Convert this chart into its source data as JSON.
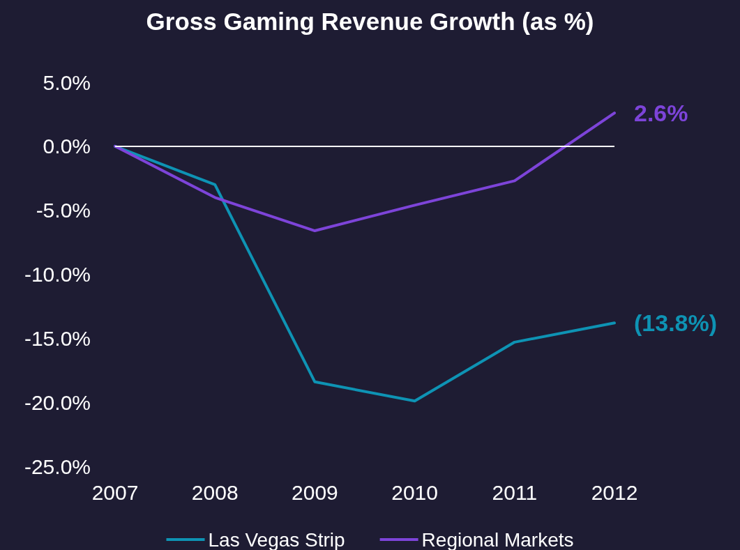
{
  "chart_data": {
    "type": "line",
    "title": "Gross Gaming Revenue Growth (as %)",
    "categories": [
      "2007",
      "2008",
      "2009",
      "2010",
      "2011",
      "2012"
    ],
    "series": [
      {
        "name": "Las Vegas Strip",
        "color": "#0e93b4",
        "values": [
          0,
          -3.0,
          -18.4,
          -19.9,
          -15.3,
          -13.8
        ],
        "value_labels": [
          null,
          null,
          null,
          null,
          null,
          "(13.8%)"
        ]
      },
      {
        "name": "Regional Markets",
        "color": "#7d44d9",
        "values": [
          0,
          -4.0,
          -6.6,
          -4.6,
          -2.7,
          2.6
        ],
        "value_labels": [
          null,
          null,
          null,
          null,
          null,
          "2.6%"
        ]
      }
    ],
    "ylim": [
      -25,
      5
    ],
    "yticks": [
      {
        "value": -25,
        "label": "-25.0%"
      },
      {
        "value": -20,
        "label": "-20.0%"
      },
      {
        "value": -15,
        "label": "-15.0%"
      },
      {
        "value": -10,
        "label": "-10.0%"
      },
      {
        "value": -5,
        "label": "-5.0%"
      },
      {
        "value": 0,
        "label": "0.0%"
      },
      {
        "value": 5,
        "label": "5.0%"
      }
    ],
    "ref_lines": [
      {
        "axis": "y",
        "value": 0,
        "color": "#ffffff"
      }
    ],
    "grid": false,
    "legend": "bottom",
    "marker": "none",
    "line_style": "solid"
  }
}
